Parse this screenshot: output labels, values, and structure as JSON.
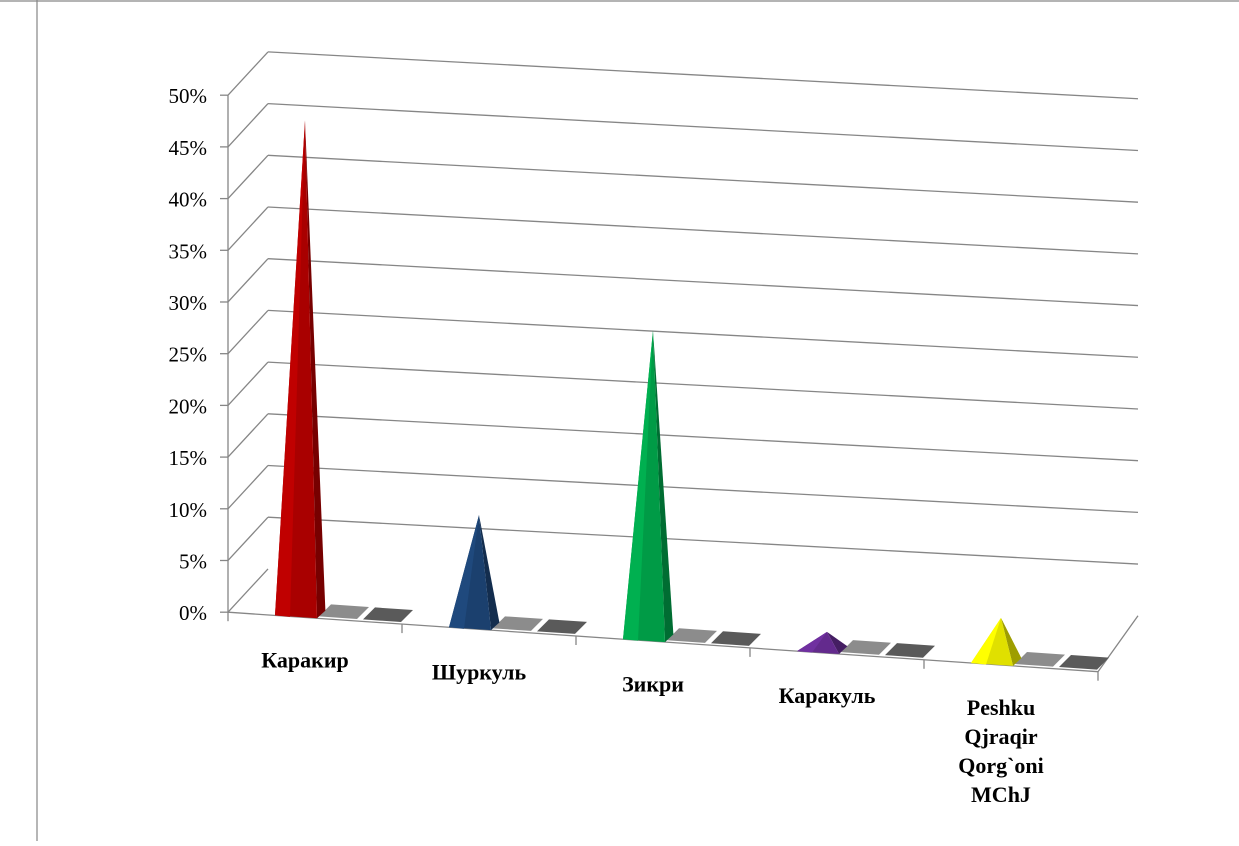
{
  "chart_data": {
    "type": "bar",
    "style": "3d-pyramid",
    "title": "",
    "xlabel": "",
    "ylabel": "",
    "categories": [
      "Каракир",
      "Шуркуль",
      "Зикри",
      "Каракуль",
      "Peshku Qjraqir Qorg`oni MChJ"
    ],
    "category_label_lines": [
      [
        "Каракир"
      ],
      [
        "Шуркуль"
      ],
      [
        "Зикри"
      ],
      [
        "Каракуль"
      ],
      [
        "Peshku",
        "Qjraqir",
        "Qorg`oni",
        "MChJ"
      ]
    ],
    "series": [
      {
        "values": [
          48,
          11,
          30,
          2,
          4.5
        ],
        "color": "varied"
      },
      {
        "values": [
          0,
          0,
          0,
          0,
          0
        ],
        "color": "#8c8c8c"
      },
      {
        "values": [
          0,
          0,
          0,
          0,
          0
        ],
        "color": "#5a5a5a"
      }
    ],
    "point_colors": [
      "#c00000",
      "#1f497d",
      "#00b050",
      "#7030a0",
      "#ffff00"
    ],
    "ylim": [
      0,
      50
    ],
    "yticks": [
      "0%",
      "5%",
      "10%",
      "15%",
      "20%",
      "25%",
      "30%",
      "35%",
      "40%",
      "45%",
      "50%"
    ],
    "grid": true,
    "legend": "none"
  }
}
